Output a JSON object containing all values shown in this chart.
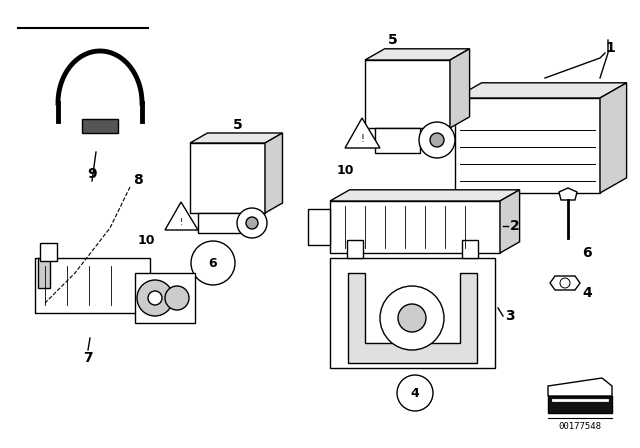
{
  "bg_color": "#ffffff",
  "line_color": "#000000",
  "fig_width": 6.4,
  "fig_height": 4.48,
  "dpi": 100,
  "watermark": "00177548"
}
